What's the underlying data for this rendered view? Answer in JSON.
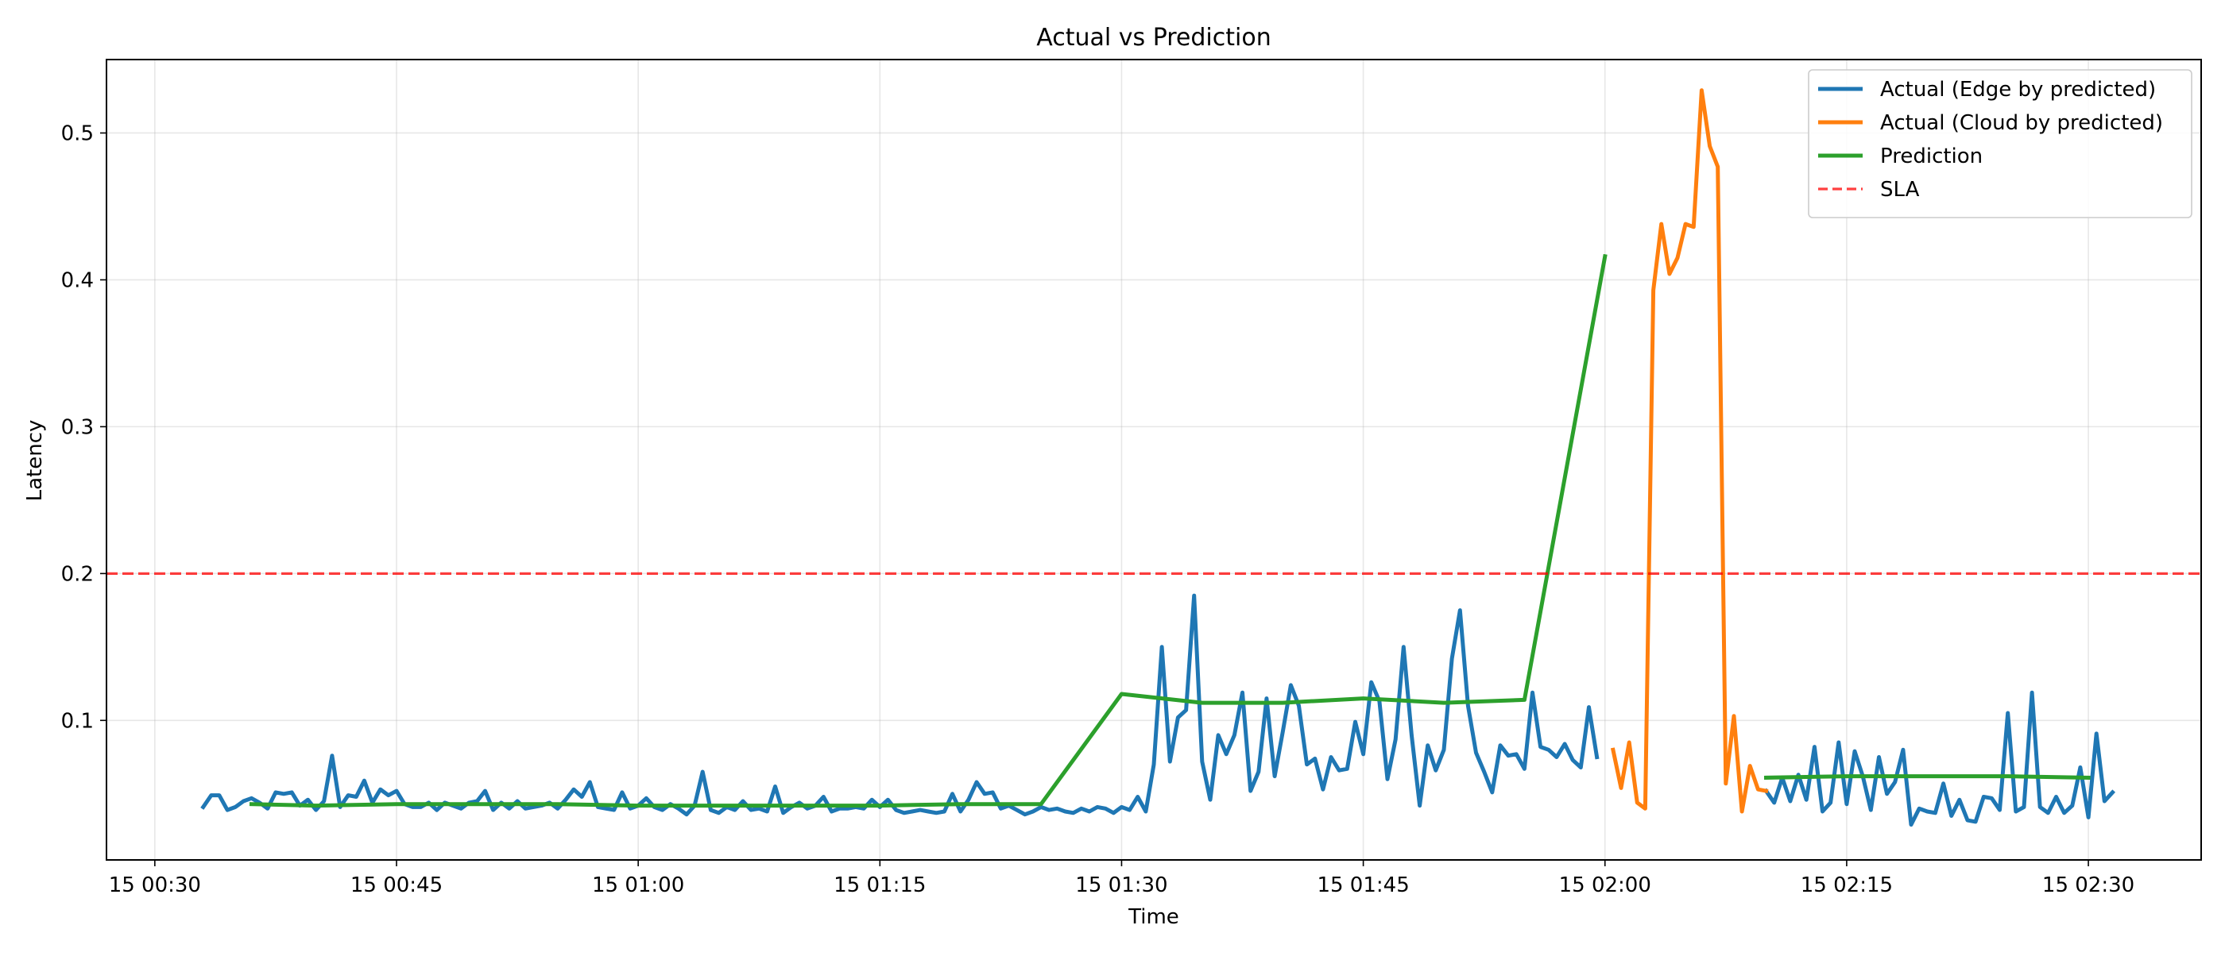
{
  "chart_data": {
    "type": "line",
    "title": "Actual vs Prediction",
    "xlabel": "Time",
    "ylabel": "Latency",
    "x_axis": {
      "kind": "time",
      "range": [
        "15 00:27",
        "15 02:37"
      ],
      "ticks": [
        {
          "t": "00:30",
          "label": "15 00:30"
        },
        {
          "t": "00:45",
          "label": "15 00:45"
        },
        {
          "t": "01:00",
          "label": "15 01:00"
        },
        {
          "t": "01:15",
          "label": "15 01:15"
        },
        {
          "t": "01:30",
          "label": "15 01:30"
        },
        {
          "t": "01:45",
          "label": "15 01:45"
        },
        {
          "t": "02:00",
          "label": "15 02:00"
        },
        {
          "t": "02:15",
          "label": "15 02:15"
        },
        {
          "t": "02:30",
          "label": "15 02:30"
        }
      ]
    },
    "y_axis": {
      "range": [
        0.005,
        0.55
      ],
      "ticks": [
        {
          "v": 0.1,
          "label": "0.1"
        },
        {
          "v": 0.2,
          "label": "0.2"
        },
        {
          "v": 0.3,
          "label": "0.3"
        },
        {
          "v": 0.4,
          "label": "0.4"
        },
        {
          "v": 0.5,
          "label": "0.5"
        }
      ]
    },
    "grid": true,
    "legend_position": "top-right",
    "sla": {
      "name": "SLA",
      "value": 0.2,
      "color": "#ff0000",
      "style": "dashed"
    },
    "series": [
      {
        "name": "Actual (Edge by predicted)",
        "color": "#1f77b4",
        "segments": [
          {
            "start": "00:33",
            "step_minutes": 0.5,
            "values": [
              0.041,
              0.049,
              0.049,
              0.039,
              0.041,
              0.045,
              0.047,
              0.044,
              0.04,
              0.051,
              0.05,
              0.051,
              0.042,
              0.046,
              0.039,
              0.045,
              0.076,
              0.041,
              0.049,
              0.048,
              0.059,
              0.044,
              0.053,
              0.049,
              0.052,
              0.043,
              0.041,
              0.041,
              0.044,
              0.039,
              0.044,
              0.042,
              0.04,
              0.044,
              0.045,
              0.052,
              0.039,
              0.044,
              0.04,
              0.045,
              0.04,
              0.041,
              0.042,
              0.044,
              0.04,
              0.046,
              0.053,
              0.048,
              0.058,
              0.041,
              0.04,
              0.039,
              0.051,
              0.04,
              0.042,
              0.047,
              0.041,
              0.039,
              0.043,
              0.04,
              0.036,
              0.042,
              0.065,
              0.039,
              0.037,
              0.041,
              0.039,
              0.045,
              0.039,
              0.04,
              0.038,
              0.055,
              0.037,
              0.041,
              0.044,
              0.04,
              0.042,
              0.048,
              0.038,
              0.04,
              0.04,
              0.041,
              0.04,
              0.046,
              0.041,
              0.046,
              0.039,
              0.037,
              0.038,
              0.039,
              0.038,
              0.037,
              0.038,
              0.05,
              0.038,
              0.046,
              0.058,
              0.05,
              0.051,
              0.04,
              0.042,
              0.039,
              0.036,
              0.038,
              0.041,
              0.039,
              0.04,
              0.038,
              0.037,
              0.04,
              0.038,
              0.041,
              0.04,
              0.037,
              0.041,
              0.039,
              0.048,
              0.038,
              0.07,
              0.15,
              0.072,
              0.102,
              0.107,
              0.185,
              0.072,
              0.046,
              0.09,
              0.077,
              0.09,
              0.119,
              0.052,
              0.065,
              0.115,
              0.062,
              0.092,
              0.124,
              0.11,
              0.07,
              0.074,
              0.053,
              0.075,
              0.066,
              0.067,
              0.099,
              0.077,
              0.126,
              0.113,
              0.06,
              0.087,
              0.15,
              0.09,
              0.042,
              0.083,
              0.066,
              0.08,
              0.142,
              0.175,
              0.11,
              0.078,
              0.065,
              0.051,
              0.083,
              0.076,
              0.077,
              0.067,
              0.119,
              0.082,
              0.08,
              0.075,
              0.084,
              0.073,
              0.068,
              0.109,
              0.075
            ]
          },
          {
            "start": "02:10",
            "step_minutes": 0.5,
            "values": [
              0.052,
              0.044,
              0.061,
              0.045,
              0.063,
              0.046,
              0.082,
              0.038,
              0.044,
              0.085,
              0.043,
              0.079,
              0.062,
              0.039,
              0.075,
              0.05,
              0.058,
              0.08,
              0.029,
              0.04,
              0.038,
              0.037,
              0.057,
              0.035,
              0.046,
              0.032,
              0.031,
              0.048,
              0.047,
              0.039,
              0.105,
              0.038,
              0.041,
              0.119,
              0.041,
              0.037,
              0.048,
              0.037,
              0.042,
              0.068,
              0.034,
              0.091,
              0.045,
              0.051
            ]
          }
        ]
      },
      {
        "name": "Actual (Cloud by predicted)",
        "color": "#ff7f0e",
        "segments": [
          {
            "start": "02:00.5",
            "step_minutes": 0.5,
            "values": [
              0.08,
              0.054,
              0.085,
              0.044,
              0.04,
              0.393,
              0.438,
              0.404,
              0.415,
              0.438,
              0.436,
              0.529,
              0.491,
              0.477,
              0.057,
              0.103,
              0.038,
              0.069,
              0.053,
              0.052
            ]
          }
        ]
      },
      {
        "name": "Prediction",
        "color": "#2ca02c",
        "segments": [
          {
            "points": [
              [
                "00:36",
                0.043
              ],
              [
                "00:40",
                0.042
              ],
              [
                "00:45",
                0.043
              ],
              [
                "00:50",
                0.043
              ],
              [
                "00:55",
                0.043
              ],
              [
                "01:00",
                0.042
              ],
              [
                "01:05",
                0.042
              ],
              [
                "01:10",
                0.042
              ],
              [
                "01:15",
                0.042
              ],
              [
                "01:20",
                0.043
              ],
              [
                "01:25",
                0.043
              ],
              [
                "01:30",
                0.118
              ],
              [
                "01:35",
                0.112
              ],
              [
                "01:40",
                0.112
              ],
              [
                "01:45",
                0.115
              ],
              [
                "01:50",
                0.112
              ],
              [
                "01:55",
                0.114
              ],
              [
                "02:00",
                0.416
              ]
            ]
          },
          {
            "points": [
              [
                "02:10",
                0.061
              ],
              [
                "02:15",
                0.062
              ],
              [
                "02:20",
                0.062
              ],
              [
                "02:25",
                0.062
              ],
              [
                "02:30",
                0.061
              ]
            ]
          }
        ]
      }
    ]
  }
}
